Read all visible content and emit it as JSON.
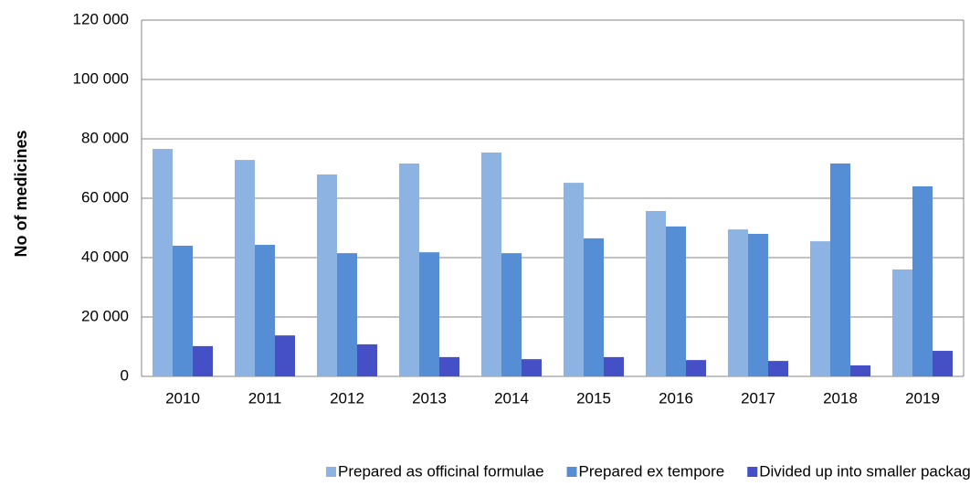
{
  "chart_data": {
    "type": "bar",
    "y_label": "No of medicines",
    "categories": [
      "2010",
      "2011",
      "2012",
      "2013",
      "2014",
      "2015",
      "2016",
      "2017",
      "2018",
      "2019"
    ],
    "series": [
      {
        "name": "Prepared as officinal formulae",
        "color": "#8db3e2",
        "values": [
          76600,
          72900,
          68000,
          71700,
          75400,
          65200,
          55700,
          49500,
          45500,
          36000
        ]
      },
      {
        "name": "Prepared ex tempore",
        "color": "#558ed5",
        "values": [
          44000,
          44300,
          41500,
          41800,
          41500,
          46500,
          50500,
          48000,
          71700,
          64000
        ]
      },
      {
        "name": "Divided up into smaller packages",
        "color": "#4650c6",
        "values": [
          10200,
          13800,
          10800,
          6500,
          5800,
          6500,
          5500,
          5200,
          3700,
          8600
        ]
      }
    ],
    "ylim": [
      0,
      120000
    ],
    "yticks": [
      0,
      {
        "value": 20000,
        "label": "20 000"
      },
      {
        "value": 40000,
        "label": "40 000"
      },
      {
        "value": 60000,
        "label": "60 000"
      },
      {
        "value": 80000,
        "label": "80 000"
      },
      {
        "value": 100000,
        "label": "100 000"
      },
      {
        "value": 120000,
        "label": "120 000"
      }
    ],
    "grid": true,
    "legend": "bottom"
  }
}
